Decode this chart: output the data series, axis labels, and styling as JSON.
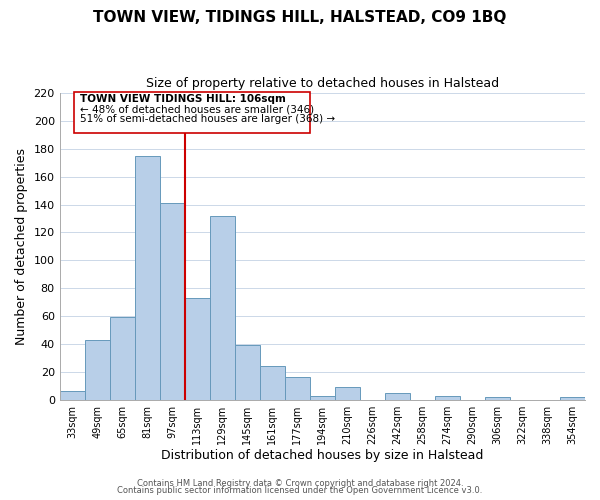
{
  "title": "TOWN VIEW, TIDINGS HILL, HALSTEAD, CO9 1BQ",
  "subtitle": "Size of property relative to detached houses in Halstead",
  "xlabel": "Distribution of detached houses by size in Halstead",
  "ylabel": "Number of detached properties",
  "bar_color": "#b8cfe8",
  "bar_edge_color": "#6699bb",
  "categories": [
    "33sqm",
    "49sqm",
    "65sqm",
    "81sqm",
    "97sqm",
    "113sqm",
    "129sqm",
    "145sqm",
    "161sqm",
    "177sqm",
    "194sqm",
    "210sqm",
    "226sqm",
    "242sqm",
    "258sqm",
    "274sqm",
    "290sqm",
    "306sqm",
    "322sqm",
    "338sqm",
    "354sqm"
  ],
  "values": [
    6,
    43,
    59,
    175,
    141,
    73,
    132,
    39,
    24,
    16,
    3,
    9,
    0,
    5,
    0,
    3,
    0,
    2,
    0,
    0,
    2
  ],
  "vline_x": 4.5,
  "vline_color": "#cc0000",
  "ylim": [
    0,
    220
  ],
  "yticks": [
    0,
    20,
    40,
    60,
    80,
    100,
    120,
    140,
    160,
    180,
    200,
    220
  ],
  "annotation_title": "TOWN VIEW TIDINGS HILL: 106sqm",
  "annotation_line1": "← 48% of detached houses are smaller (346)",
  "annotation_line2": "51% of semi-detached houses are larger (368) →",
  "footer1": "Contains HM Land Registry data © Crown copyright and database right 2024.",
  "footer2": "Contains public sector information licensed under the Open Government Licence v3.0.",
  "background_color": "#ffffff",
  "grid_color": "#ccd8e8"
}
